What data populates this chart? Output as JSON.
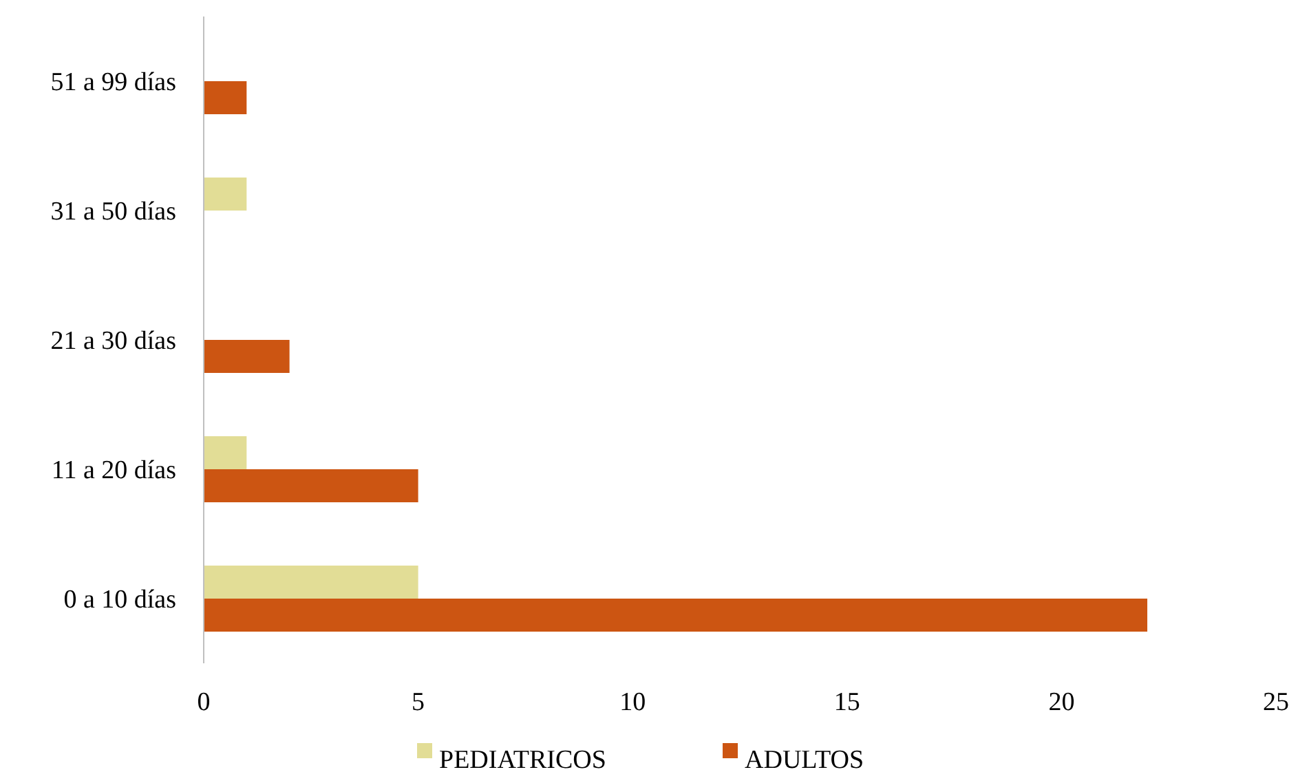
{
  "chart_data": {
    "type": "bar",
    "orientation": "horizontal",
    "categories": [
      "51 a 99 días",
      "31 a 50 días",
      "21 a 30 días",
      "11 a 20 días",
      "0 a 10 días"
    ],
    "series": [
      {
        "name": "PEDIATRICOS",
        "color": "#e2dd96",
        "values": [
          null,
          1,
          null,
          1,
          5
        ]
      },
      {
        "name": "ADULTOS",
        "color": "#cc5512",
        "values": [
          1,
          null,
          2,
          5,
          22
        ]
      }
    ],
    "xlim": [
      0,
      25
    ],
    "xticks": [
      0,
      5,
      10,
      15,
      20,
      25
    ],
    "grid": false,
    "legend": "bottom"
  }
}
